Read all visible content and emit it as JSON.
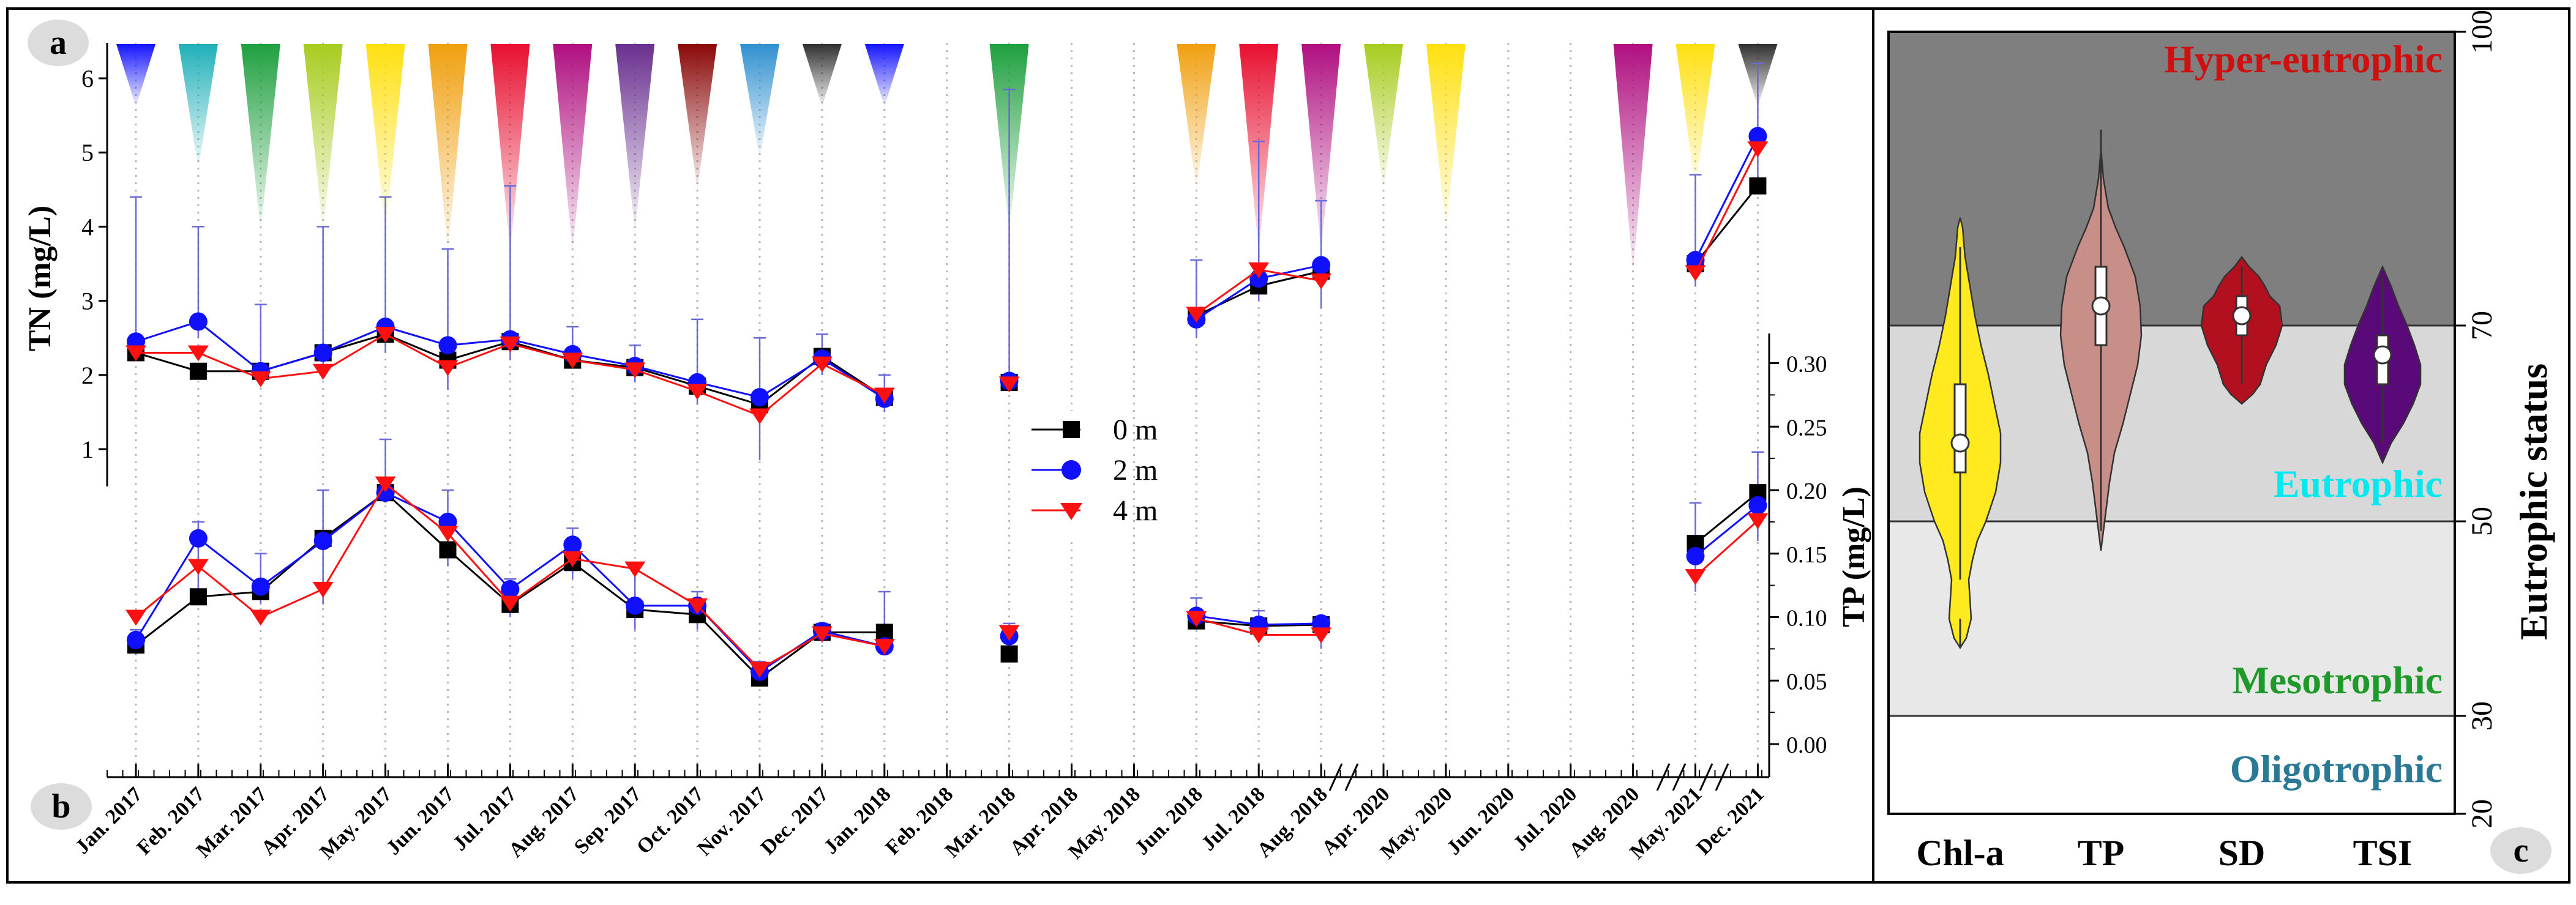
{
  "panel_labels": {
    "a": "a",
    "b": "b",
    "c": "c"
  },
  "colors": {
    "s0": "#000000",
    "s2": "#1010ff",
    "s4": "#ff1010",
    "hyper": "#d01010",
    "eutro": "#00e8f0",
    "meso": "#1f9a2a",
    "oligo": "#2b7a95",
    "zone_hyper": "#7f7f7f",
    "zone_eutro": "#d8d8d8",
    "zone_meso": "#e8e8e8",
    "zone_oligo": "#ffffff",
    "v_chla": "#ffea1f",
    "v_tp": "#c88f88",
    "v_sd": "#b3101f",
    "v_tsi": "#5a0a78",
    "cones": [
      "#1414ff",
      "#20b0b8",
      "#20a040",
      "#a8cc20",
      "#ffe010",
      "#f0a010",
      "#e81030",
      "#b01080",
      "#6a3090",
      "#8a0808",
      "#3090d0",
      "#303030",
      "#1414ff",
      "#20a040",
      "#f0a010",
      "#e81030",
      "#b01080",
      "#a8cc20",
      "#ffe010",
      "#b01080",
      "#ffe010",
      "#303030"
    ]
  },
  "chart_data": [
    {
      "type": "line",
      "panel": "a",
      "ylabel": "TN (mg/L)",
      "ylim": [
        0.6,
        6.4
      ],
      "yticks": [
        "1",
        "2",
        "3",
        "4",
        "5",
        "6"
      ],
      "categories": [
        "Jan. 2017",
        "Feb. 2017",
        "Mar. 2017",
        "Apr. 2017",
        "May. 2017",
        "Jun. 2017",
        "Jul. 2017",
        "Aug. 2017",
        "Sep. 2017",
        "Oct. 2017",
        "Nov. 2017",
        "Dec. 2017",
        "Jan. 2018",
        "Feb. 2018",
        "Mar. 2018",
        "Apr. 2018",
        "May. 2018",
        "Jun. 2018",
        "Jul. 2018",
        "Aug. 2018",
        "Apr. 2020",
        "May. 2020",
        "Jun. 2020",
        "Jul. 2020",
        "Aug. 2020",
        "May. 2021",
        "Dec. 2021"
      ],
      "series": [
        {
          "name": "0 m",
          "values": [
            2.3,
            2.05,
            2.05,
            2.3,
            2.55,
            2.2,
            2.45,
            2.2,
            2.1,
            1.85,
            1.6,
            2.25,
            1.7,
            null,
            1.9,
            null,
            null,
            2.8,
            3.2,
            3.4,
            null,
            null,
            null,
            null,
            null,
            3.5,
            4.55
          ]
        },
        {
          "name": "2 m",
          "values": [
            2.45,
            2.72,
            2.05,
            2.3,
            2.65,
            2.4,
            2.48,
            2.28,
            2.12,
            1.9,
            1.7,
            2.22,
            1.68,
            null,
            1.92,
            null,
            null,
            2.75,
            3.3,
            3.48,
            null,
            null,
            null,
            null,
            null,
            3.55,
            5.22
          ]
        },
        {
          "name": "4 m",
          "values": [
            2.3,
            2.3,
            1.95,
            2.05,
            2.55,
            2.1,
            2.42,
            2.2,
            2.07,
            1.78,
            1.45,
            2.15,
            1.73,
            null,
            1.88,
            null,
            null,
            2.82,
            3.42,
            3.27,
            null,
            null,
            null,
            null,
            null,
            3.38,
            5.05
          ]
        }
      ]
    },
    {
      "type": "line",
      "panel": "b",
      "ylabel": "TP (mg/L)",
      "ylim": [
        -0.02,
        0.325
      ],
      "yticks": [
        "0.00",
        "0.05",
        "0.10",
        "0.15",
        "0.20",
        "0.25",
        "0.30"
      ],
      "categories": "same as panel a",
      "series": [
        {
          "name": "0 m",
          "values": [
            0.078,
            0.116,
            0.12,
            0.162,
            0.198,
            0.153,
            0.11,
            0.143,
            0.106,
            0.102,
            0.052,
            0.088,
            0.088,
            null,
            0.071,
            null,
            null,
            0.097,
            0.093,
            0.094,
            null,
            null,
            null,
            null,
            null,
            0.158,
            0.198
          ]
        },
        {
          "name": "2 m",
          "values": [
            0.082,
            0.162,
            0.124,
            0.16,
            0.198,
            0.175,
            0.122,
            0.157,
            0.109,
            0.109,
            0.057,
            0.089,
            0.077,
            null,
            0.085,
            null,
            null,
            0.101,
            0.094,
            0.095,
            null,
            null,
            null,
            null,
            null,
            0.148,
            0.188
          ]
        },
        {
          "name": "4 m",
          "values": [
            0.1,
            0.14,
            0.1,
            0.122,
            0.205,
            0.166,
            0.111,
            0.146,
            0.138,
            0.109,
            0.059,
            0.087,
            0.077,
            null,
            0.088,
            null,
            null,
            0.099,
            0.086,
            0.086,
            null,
            null,
            null,
            null,
            null,
            0.132,
            0.176
          ]
        }
      ]
    },
    {
      "type": "violin",
      "panel": "c",
      "ylabel": "Eutrophic status",
      "ylim": [
        20,
        100
      ],
      "yticks": [
        "20",
        "30",
        "50",
        "70",
        "100"
      ],
      "categories": [
        "Chl-a",
        "TP",
        "SD",
        "TSI"
      ],
      "medians": [
        58,
        72,
        71,
        67
      ],
      "zones": [
        "Hyper-eutrophic",
        "Eutrophic",
        "Mesotrophic",
        "Oligotrophic"
      ]
    }
  ]
}
